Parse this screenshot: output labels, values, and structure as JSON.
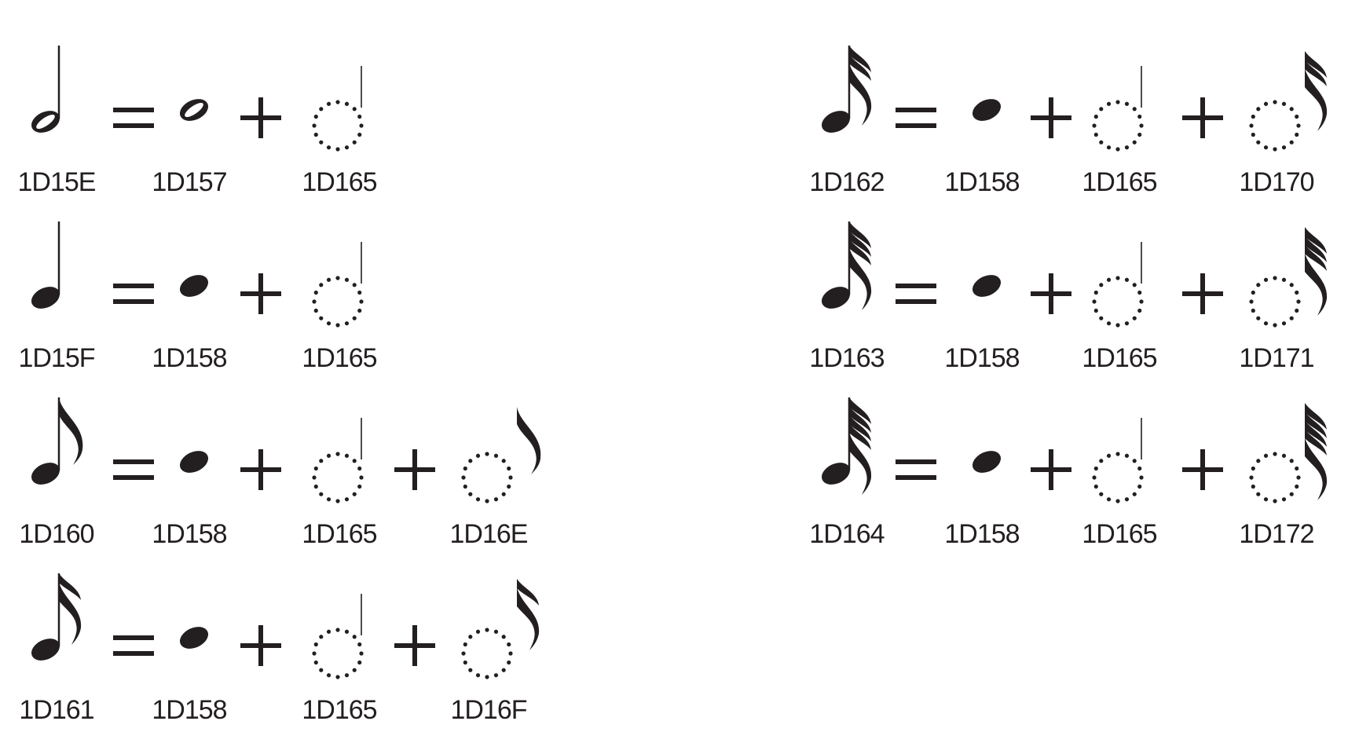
{
  "ink": "#231f20",
  "rows": [
    {
      "items": [
        {
          "glyph": "note-half",
          "code": "1D15E"
        },
        {
          "op": "equals"
        },
        {
          "glyph": "notehead-void",
          "code": "1D157"
        },
        {
          "op": "plus"
        },
        {
          "glyph": "combining-stem",
          "code": "1D165"
        }
      ]
    },
    {
      "items": [
        {
          "glyph": "note-quarter",
          "code": "1D15F"
        },
        {
          "op": "equals"
        },
        {
          "glyph": "notehead-black",
          "code": "1D158"
        },
        {
          "op": "plus"
        },
        {
          "glyph": "combining-stem",
          "code": "1D165"
        }
      ]
    },
    {
      "items": [
        {
          "glyph": "note-eighth",
          "code": "1D160"
        },
        {
          "op": "equals"
        },
        {
          "glyph": "notehead-black",
          "code": "1D158"
        },
        {
          "op": "plus"
        },
        {
          "glyph": "combining-stem",
          "code": "1D165"
        },
        {
          "op": "plus"
        },
        {
          "glyph": "combining-flag-1",
          "code": "1D16E"
        }
      ]
    },
    {
      "items": [
        {
          "glyph": "note-sixteenth",
          "code": "1D161"
        },
        {
          "op": "equals"
        },
        {
          "glyph": "notehead-black",
          "code": "1D158"
        },
        {
          "op": "plus"
        },
        {
          "glyph": "combining-stem",
          "code": "1D165"
        },
        {
          "op": "plus"
        },
        {
          "glyph": "combining-flag-2",
          "code": "1D16F"
        }
      ]
    },
    {
      "items": [
        {
          "glyph": "note-thirty-second",
          "code": "1D162"
        },
        {
          "op": "equals"
        },
        {
          "glyph": "notehead-black",
          "code": "1D158"
        },
        {
          "op": "plus"
        },
        {
          "glyph": "combining-stem",
          "code": "1D165"
        },
        {
          "op": "plus"
        },
        {
          "glyph": "combining-flag-3",
          "code": "1D170"
        }
      ]
    },
    {
      "items": [
        {
          "glyph": "note-sixty-fourth",
          "code": "1D163"
        },
        {
          "op": "equals"
        },
        {
          "glyph": "notehead-black",
          "code": "1D158"
        },
        {
          "op": "plus"
        },
        {
          "glyph": "combining-stem",
          "code": "1D165"
        },
        {
          "op": "plus"
        },
        {
          "glyph": "combining-flag-4",
          "code": "1D171"
        }
      ]
    },
    {
      "items": [
        {
          "glyph": "note-one-twenty-eighth",
          "code": "1D164"
        },
        {
          "op": "equals"
        },
        {
          "glyph": "notehead-black",
          "code": "1D158"
        },
        {
          "op": "plus"
        },
        {
          "glyph": "combining-stem",
          "code": "1D165"
        },
        {
          "op": "plus"
        },
        {
          "glyph": "combining-flag-5",
          "code": "1D172"
        }
      ]
    }
  ]
}
